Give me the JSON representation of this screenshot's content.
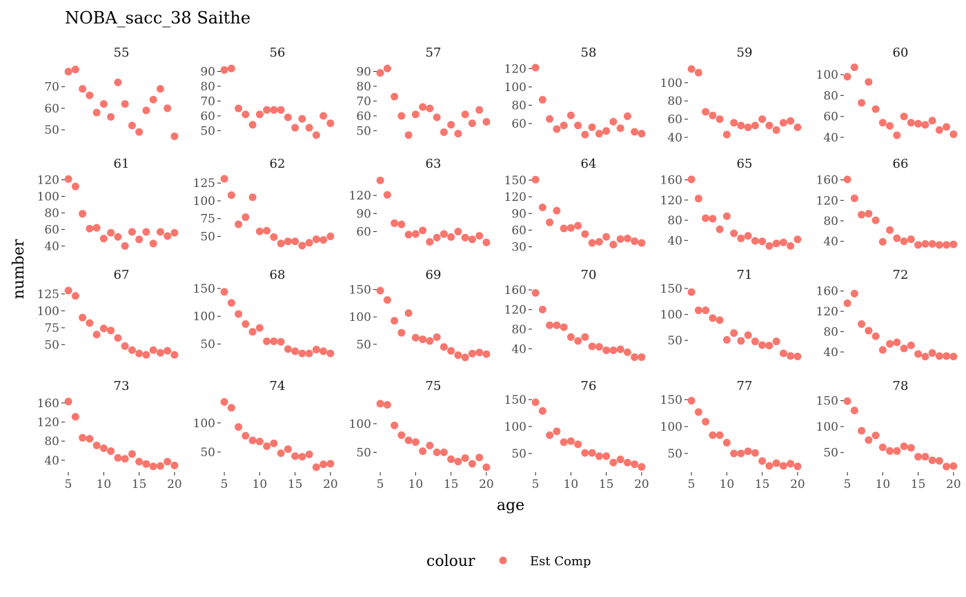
{
  "chart_data": {
    "type": "scatter",
    "title": "NOBA_sacc_38 Saithe",
    "xlabel": "age",
    "ylabel": "number",
    "x_ticks": [
      5,
      10,
      15,
      20
    ],
    "xlim": [
      4.6,
      20.4
    ],
    "grid": false,
    "facet": "free_y",
    "legend": {
      "title": "colour",
      "placement": "bottom",
      "entries": [
        {
          "label": "Est Comp",
          "color": "#F8766D"
        }
      ]
    },
    "series": [
      {
        "name": "Est Comp",
        "color": "#F8766D"
      }
    ],
    "ages": [
      5,
      6,
      7,
      8,
      9,
      10,
      11,
      12,
      13,
      14,
      15,
      16,
      17,
      18,
      19,
      20
    ],
    "panels": [
      {
        "label": "55",
        "ylim": [
          46.5,
          79.5
        ],
        "yticks": [
          50,
          60,
          70
        ],
        "values": [
          77,
          78,
          69,
          66,
          58,
          62,
          56,
          72,
          62,
          52,
          49,
          59,
          64,
          69,
          60,
          47
        ]
      },
      {
        "label": "56",
        "ylim": [
          45.5,
          93.5
        ],
        "yticks": [
          50,
          60,
          70,
          80,
          90
        ],
        "values": [
          91,
          92,
          65,
          61,
          54,
          61,
          64,
          64,
          64,
          59,
          52,
          58,
          52,
          47,
          60,
          55
        ]
      },
      {
        "label": "57",
        "ylim": [
          45.5,
          93.5
        ],
        "yticks": [
          50,
          60,
          70,
          80,
          90
        ],
        "values": [
          89,
          92,
          73,
          60,
          47,
          61,
          66,
          65,
          59,
          49,
          54,
          48,
          61,
          55,
          64,
          56
        ]
      },
      {
        "label": "58",
        "ylim": [
          45,
          122.5
        ],
        "yticks": [
          60,
          80,
          100,
          120
        ],
        "values": [
          121,
          86,
          65,
          54,
          58,
          69,
          58,
          48,
          56,
          49,
          52,
          62,
          55,
          68,
          51,
          49
        ]
      },
      {
        "label": "59",
        "ylim": [
          40,
          118
        ],
        "yticks": [
          40,
          60,
          80,
          100
        ],
        "values": [
          115,
          111,
          68,
          64,
          60,
          43,
          56,
          53,
          51,
          53,
          60,
          53,
          48,
          56,
          58,
          51
        ]
      },
      {
        "label": "60",
        "ylim": [
          40,
          108
        ],
        "yticks": [
          40,
          60,
          80,
          100
        ],
        "values": [
          98,
          107,
          73,
          93,
          67,
          54,
          51,
          42,
          60,
          54,
          53,
          52,
          56,
          47,
          50,
          43
        ]
      },
      {
        "label": "61",
        "ylim": [
          37,
          123
        ],
        "yticks": [
          40,
          60,
          80,
          100,
          120
        ],
        "values": [
          121,
          112,
          79,
          61,
          62,
          49,
          56,
          51,
          40,
          57,
          48,
          57,
          43,
          57,
          52,
          56
        ]
      },
      {
        "label": "62",
        "ylim": [
          33,
          133
        ],
        "yticks": [
          50,
          75,
          100,
          125
        ],
        "values": [
          131,
          108,
          67,
          77,
          105,
          57,
          58,
          49,
          40,
          43,
          43,
          37,
          41,
          46,
          45,
          50
        ]
      },
      {
        "label": "63",
        "ylim": [
          32,
          150
        ],
        "yticks": [
          60,
          90,
          120
        ],
        "values": [
          145,
          121,
          74,
          72,
          55,
          56,
          62,
          43,
          50,
          56,
          51,
          60,
          50,
          47,
          53,
          42
        ]
      },
      {
        "label": "64",
        "ylim": [
          27,
          155
        ],
        "yticks": [
          30,
          60,
          90,
          120,
          150
        ],
        "values": [
          151,
          101,
          74,
          95,
          63,
          64,
          68,
          53,
          37,
          39,
          48,
          34,
          44,
          45,
          40,
          37
        ]
      },
      {
        "label": "65",
        "ylim": [
          24,
          165
        ],
        "yticks": [
          40,
          80,
          120,
          160
        ],
        "values": [
          161,
          123,
          84,
          83,
          62,
          88,
          54,
          44,
          49,
          39,
          38,
          29,
          34,
          36,
          29,
          42
        ]
      },
      {
        "label": "66",
        "ylim": [
          26,
          165
        ],
        "yticks": [
          40,
          80,
          120,
          160
        ],
        "values": [
          161,
          124,
          92,
          94,
          81,
          39,
          62,
          46,
          40,
          44,
          33,
          35,
          35,
          33,
          33,
          34
        ]
      },
      {
        "label": "67",
        "ylim": [
          28,
          133
        ],
        "yticks": [
          50,
          75,
          100,
          125
        ],
        "values": [
          130,
          122,
          90,
          82,
          65,
          74,
          71,
          60,
          48,
          42,
          37,
          35,
          42,
          38,
          41,
          35
        ]
      },
      {
        "label": "68",
        "ylim": [
          22,
          150
        ],
        "yticks": [
          50,
          100,
          150
        ],
        "values": [
          144,
          124,
          104,
          86,
          72,
          79,
          55,
          55,
          54,
          41,
          37,
          33,
          33,
          40,
          37,
          33
        ]
      },
      {
        "label": "69",
        "ylim": [
          22,
          152
        ],
        "yticks": [
          50,
          100,
          150
        ],
        "values": [
          148,
          131,
          93,
          71,
          107,
          62,
          59,
          56,
          63,
          45,
          38,
          30,
          26,
          33,
          35,
          32
        ]
      },
      {
        "label": "70",
        "ylim": [
          18,
          163
        ],
        "yticks": [
          40,
          80,
          120,
          160
        ],
        "values": [
          154,
          120,
          88,
          88,
          84,
          64,
          56,
          64,
          45,
          44,
          37,
          37,
          39,
          33,
          23,
          23
        ]
      },
      {
        "label": "71",
        "ylim": [
          13,
          150
        ],
        "yticks": [
          50,
          100,
          150
        ],
        "values": [
          143,
          108,
          108,
          93,
          89,
          51,
          64,
          49,
          60,
          48,
          41,
          40,
          48,
          25,
          20,
          19
        ]
      },
      {
        "label": "72",
        "ylim": [
          25,
          165
        ],
        "yticks": [
          40,
          80,
          120,
          160
        ],
        "values": [
          136,
          155,
          95,
          82,
          71,
          44,
          56,
          59,
          47,
          53,
          36,
          31,
          38,
          32,
          32,
          31
        ]
      },
      {
        "label": "73",
        "ylim": [
          18,
          167
        ],
        "yticks": [
          40,
          80,
          120,
          160
        ],
        "values": [
          163,
          131,
          87,
          85,
          71,
          65,
          59,
          45,
          43,
          53,
          37,
          32,
          27,
          28,
          37,
          29
        ]
      },
      {
        "label": "74",
        "ylim": [
          18,
          140
        ],
        "yticks": [
          50,
          100
        ],
        "values": [
          136,
          126,
          93,
          78,
          70,
          68,
          60,
          65,
          48,
          55,
          43,
          42,
          46,
          24,
          29,
          30
        ]
      },
      {
        "label": "75",
        "ylim": [
          18,
          142
        ],
        "yticks": [
          50,
          100
        ],
        "values": [
          135,
          133,
          97,
          80,
          71,
          68,
          52,
          62,
          50,
          50,
          38,
          34,
          40,
          30,
          41,
          24
        ]
      },
      {
        "label": "76",
        "ylim": [
          18,
          150
        ],
        "yticks": [
          50,
          100,
          150
        ],
        "values": [
          145,
          129,
          84,
          91,
          71,
          73,
          67,
          51,
          51,
          45,
          45,
          33,
          39,
          33,
          30,
          25
        ]
      },
      {
        "label": "77",
        "ylim": [
          18,
          150
        ],
        "yticks": [
          50,
          100,
          150
        ],
        "values": [
          148,
          127,
          109,
          84,
          84,
          70,
          50,
          50,
          54,
          51,
          36,
          27,
          32,
          27,
          31,
          26
        ]
      },
      {
        "label": "78",
        "ylim": [
          15,
          152
        ],
        "yticks": [
          50,
          100,
          150
        ],
        "values": [
          149,
          131,
          92,
          74,
          83,
          60,
          53,
          53,
          62,
          59,
          42,
          42,
          35,
          34,
          23,
          24
        ]
      }
    ]
  }
}
